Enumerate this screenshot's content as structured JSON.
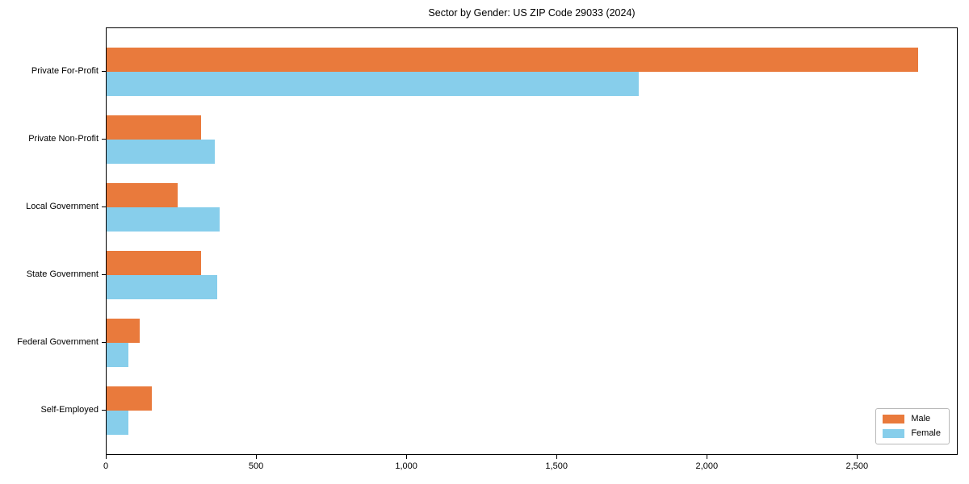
{
  "chart_data": {
    "type": "bar",
    "orientation": "horizontal",
    "title": "Sector by Gender: US ZIP Code 29033 (2024)",
    "categories": [
      "Private For-Profit",
      "Private Non-Profit",
      "Local Government",
      "State Government",
      "Federal Government",
      "Self-Employed"
    ],
    "series": [
      {
        "name": "Male",
        "color": "#E97A3C",
        "values": [
          2700,
          315,
          235,
          315,
          110,
          150
        ]
      },
      {
        "name": "Female",
        "color": "#87CEEB",
        "values": [
          1770,
          360,
          375,
          367,
          72,
          72
        ]
      }
    ],
    "xlabel": "",
    "ylabel": "",
    "xlim": [
      0,
      2835
    ],
    "xticks": [
      {
        "value": 0,
        "label": "0"
      },
      {
        "value": 500,
        "label": "500"
      },
      {
        "value": 1000,
        "label": "1,000"
      },
      {
        "value": 1500,
        "label": "1,500"
      },
      {
        "value": 2000,
        "label": "2,000"
      },
      {
        "value": 2500,
        "label": "2,500"
      }
    ],
    "grid": false,
    "legend": {
      "position": "lower-right",
      "entries": [
        "Male",
        "Female"
      ]
    },
    "colors": {
      "axis": "#000000",
      "background": "#ffffff",
      "legend_border": "#b9b9b9"
    }
  }
}
